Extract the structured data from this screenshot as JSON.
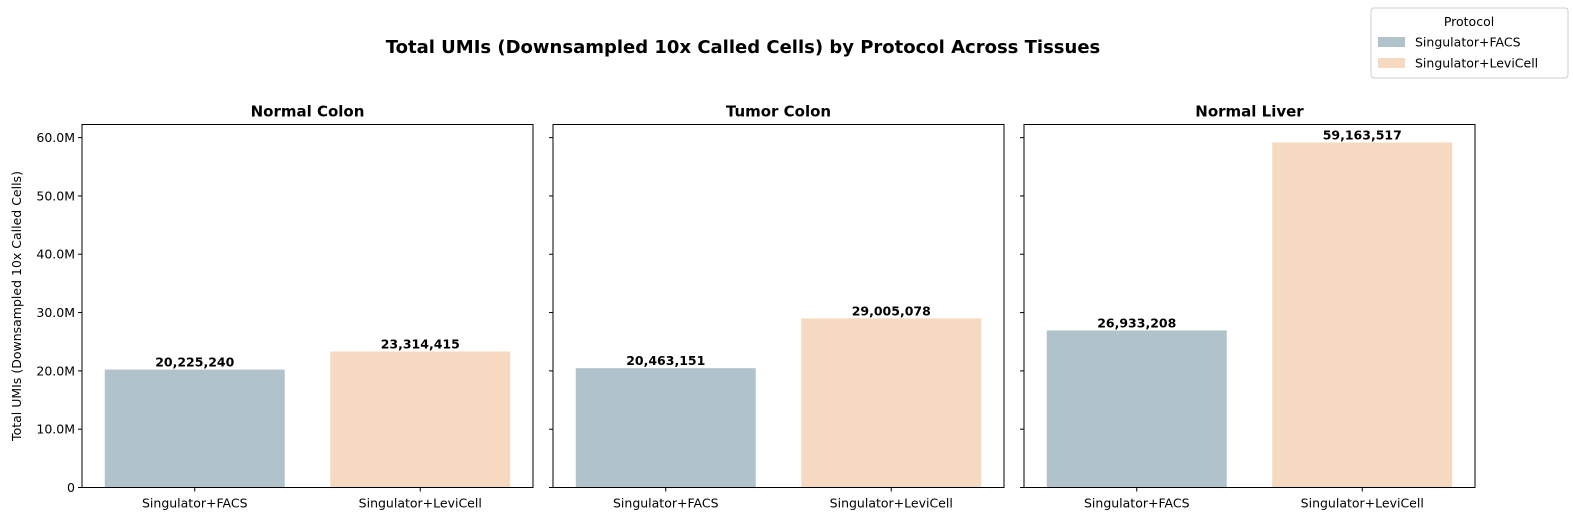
{
  "chart_data": {
    "type": "bar",
    "title": "Total UMIs (Downsampled 10x Called Cells) by Protocol Across Tissues",
    "ylabel": "Total UMIs (Downsampled 10x Called Cells)",
    "ylim": [
      0,
      62250000
    ],
    "yticks": [
      0,
      10000000,
      20000000,
      30000000,
      40000000,
      50000000,
      60000000
    ],
    "ytick_labels": [
      "0",
      "10.0M",
      "20.0M",
      "30.0M",
      "40.0M",
      "50.0M",
      "60.0M"
    ],
    "categories": [
      "Singulator+FACS",
      "Singulator+LeviCell"
    ],
    "colors": {
      "Singulator+FACS": "#b0c3ca",
      "Singulator+LeviCell": "#f5dac1"
    },
    "legend": {
      "title": "Protocol",
      "placement": "top-right",
      "entries": [
        "Singulator+FACS",
        "Singulator+LeviCell"
      ]
    },
    "panels": [
      {
        "title": "Normal Colon",
        "values": [
          20225240,
          23314415
        ],
        "labels": [
          "20,225,240",
          "23,314,415"
        ]
      },
      {
        "title": "Tumor Colon",
        "values": [
          20463151,
          29005078
        ],
        "labels": [
          "20,463,151",
          "29,005,078"
        ]
      },
      {
        "title": "Normal Liver",
        "values": [
          26933208,
          59163517
        ],
        "labels": [
          "26,933,208",
          "59,163,517"
        ]
      }
    ]
  }
}
